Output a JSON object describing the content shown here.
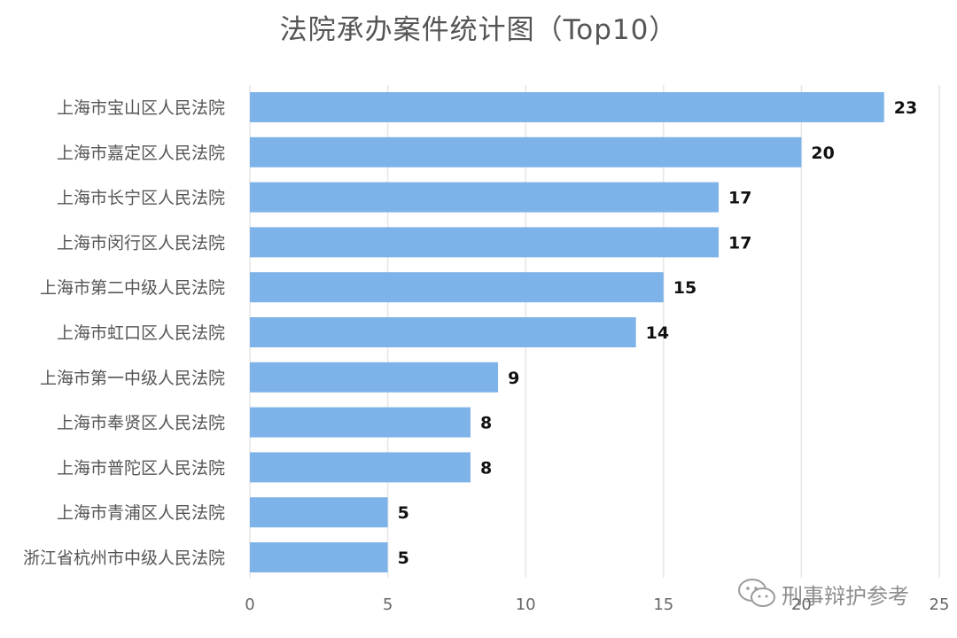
{
  "chart_data": {
    "type": "bar",
    "orientation": "horizontal",
    "title": "法院承办案件统计图（Top10）",
    "categories": [
      "上海市宝山区人民法院",
      "上海市嘉定区人民法院",
      "上海市长宁区人民法院",
      "上海市闵行区人民法院",
      "上海市第二中级人民法院",
      "上海市虹口区人民法院",
      "上海市第一中级人民法院",
      "上海市奉贤区人民法院",
      "上海市普陀区人民法院",
      "上海市青浦区人民法院",
      "浙江省杭州市中级人民法院"
    ],
    "values": [
      23,
      20,
      17,
      17,
      15,
      14,
      9,
      8,
      8,
      5,
      5
    ],
    "xlim": [
      0,
      25
    ],
    "xticks": [
      0,
      5,
      10,
      15,
      20,
      25
    ],
    "grid": "vertical",
    "data_labels": true,
    "bar_color": "#7eb3e9",
    "grid_color": "#e6e6e6"
  },
  "watermark": {
    "text": "刑事辩护参考",
    "icon": "wechat-icon"
  }
}
